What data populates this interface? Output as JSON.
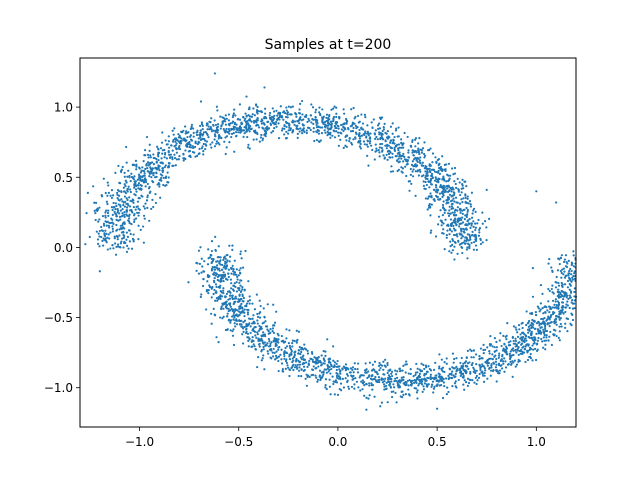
{
  "chart_data": {
    "type": "scatter",
    "title": "Samples at t=200",
    "xlabel": "",
    "ylabel": "",
    "xlim": [
      -1.3,
      1.2
    ],
    "ylim": [
      -1.28,
      1.35
    ],
    "xticks": [
      -1.0,
      -0.5,
      0.0,
      0.5,
      1.0
    ],
    "xtick_labels": [
      "−1.0",
      "−0.5",
      "0.0",
      "0.5",
      "1.0"
    ],
    "yticks": [
      -1.0,
      -0.5,
      0.0,
      0.5,
      1.0
    ],
    "ytick_labels": [
      "−1.0",
      "−0.5",
      "0.0",
      "0.5",
      "1.0"
    ],
    "grid": false,
    "marker_color": "#1f77b4",
    "series": [
      {
        "shape": "two interleaving half-moons",
        "point_count": 4000,
        "upper_moon": {
          "center": [
            -0.25,
            0.02
          ],
          "radius": 0.88,
          "arc_deg": [
            0,
            180
          ],
          "noise": 0.06
        },
        "lower_moon": {
          "center": [
            0.3,
            -0.05
          ],
          "radius": 0.9,
          "arc_deg": [
            180,
            360
          ],
          "noise": 0.06
        },
        "sample_points": [
          [
            -1.2,
            -0.17
          ],
          [
            -1.08,
            0.32
          ],
          [
            -1.05,
            0.12
          ],
          [
            -1.02,
            0.45
          ],
          [
            -0.95,
            0.6
          ],
          [
            -0.62,
            1.24
          ],
          [
            -0.37,
            1.14
          ],
          [
            -0.69,
            1.04
          ],
          [
            0.5,
            -1.15
          ],
          [
            1.1,
            0.32
          ],
          [
            1.0,
            0.4
          ],
          [
            0.75,
            0.41
          ],
          [
            0.55,
            0.32
          ],
          [
            0.47,
            0.12
          ],
          [
            0.47,
            0.45
          ]
        ]
      }
    ]
  }
}
